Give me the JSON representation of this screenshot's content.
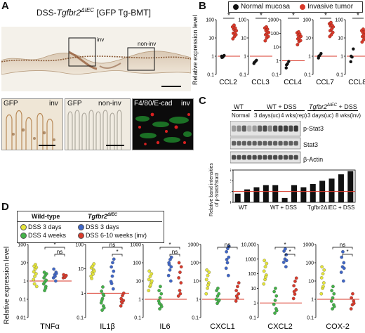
{
  "panelA": {
    "letter": "A",
    "title_prefix": "DSS-",
    "title_gene": "Tgfbr2",
    "title_super": "ΔIEC",
    "title_suffix": " [GFP Tg-BMT]",
    "region_inv": "inv",
    "region_noninv": "non-inv",
    "sub1_marker": "GFP",
    "sub1_region": "inv",
    "sub2_marker": "GFP",
    "sub2_region": "non-inv",
    "sub3_marker": "F4/80/E-cad",
    "sub3_region": "inv"
  },
  "panelB": {
    "letter": "B",
    "legend_normal": "Normal mucosa",
    "legend_tumor": "Invasive tumor",
    "ylabel": "Relative expression level",
    "colors": {
      "normal": "#111111",
      "tumor": "#d93a2b",
      "line": "#d93a2b"
    },
    "chart_data": [
      {
        "type": "scatter",
        "xlabel": "CCL2",
        "scale": "log",
        "ylim": [
          0.1,
          100
        ],
        "yticks": [
          "100",
          "10",
          "1",
          "0.1"
        ],
        "significance": "*",
        "series": [
          {
            "name": "Normal mucosa",
            "values": [
              1.0,
              0.9,
              1.1,
              0.85
            ]
          },
          {
            "name": "Invasive tumor",
            "values": [
              9,
              12,
              15,
              18,
              20,
              25,
              30,
              35,
              40,
              50
            ]
          }
        ]
      },
      {
        "type": "scatter",
        "xlabel": "CCL3",
        "scale": "log",
        "ylim": [
          0.1,
          100
        ],
        "yticks": [
          "100",
          "10",
          "1",
          "0.1"
        ],
        "significance": "*",
        "series": [
          {
            "name": "Normal mucosa",
            "values": [
              0.4,
              0.5,
              0.6,
              0.45
            ]
          },
          {
            "name": "Invasive tumor",
            "values": [
              7,
              10,
              12,
              15,
              18,
              20,
              25,
              30,
              35,
              40
            ]
          }
        ]
      },
      {
        "type": "scatter",
        "xlabel": "CCL4",
        "scale": "log",
        "ylim": [
          0.1,
          1000
        ],
        "yticks": [
          "1000",
          "100",
          "10",
          "1",
          "0.1"
        ],
        "significance": "*",
        "series": [
          {
            "name": "Normal mucosa",
            "values": [
              0.3,
              0.6,
              0.9,
              0.5
            ]
          },
          {
            "name": "Invasive tumor",
            "values": [
              15,
              25,
              30,
              40,
              50,
              60,
              70,
              90,
              110,
              130
            ]
          }
        ]
      },
      {
        "type": "scatter",
        "xlabel": "CCL7",
        "scale": "log",
        "ylim": [
          0.1,
          100
        ],
        "yticks": [
          "100",
          "10",
          "1",
          "0.1"
        ],
        "significance": "*",
        "series": [
          {
            "name": "Normal mucosa",
            "values": [
              0.8,
              1.1,
              1.4,
              1.0
            ]
          },
          {
            "name": "Invasive tumor",
            "values": [
              12,
              15,
              20,
              25,
              30,
              40,
              45,
              50,
              60,
              70
            ]
          }
        ]
      },
      {
        "type": "scatter",
        "xlabel": "CCL8",
        "scale": "log",
        "ylim": [
          0.1,
          100
        ],
        "yticks": [
          "100",
          "10",
          "1",
          "0.1"
        ],
        "significance": "*",
        "series": [
          {
            "name": "Normal mucosa",
            "values": [
              0.5,
              0.9,
              2.5,
              1.0
            ]
          },
          {
            "name": "Invasive tumor",
            "values": [
              6,
              8,
              10,
              12,
              15,
              18,
              20,
              22,
              25,
              30
            ]
          }
        ]
      }
    ]
  },
  "panelC": {
    "letter": "C",
    "group_wt": "WT",
    "group_wtdss": "WT + DSS",
    "group_ko_gene": "Tgfbr2",
    "group_ko_super": "ΔIEC",
    "group_ko_suffix": " + DSS",
    "lanes": [
      "Normal",
      "3 days(uc)",
      "4 wks(rep)",
      "3 days(uc)",
      "8 wks(inv)"
    ],
    "blot_labels": [
      "p-Stat3",
      "Stat3",
      "β-Actin"
    ],
    "ylabel": "Relative band intensities of p-Stat3/Stat3",
    "chart_data": {
      "type": "bar",
      "ylim": [
        0,
        3
      ],
      "yticks": [
        "3",
        "2",
        "1",
        "0"
      ],
      "xgroups": [
        "WT",
        "WT + DSS",
        "Tgfbr2ΔIEC + DSS"
      ],
      "values": [
        0.8,
        1.2,
        1.4,
        1.6,
        1.6,
        0.4,
        1.6,
        1.4,
        1.7,
        2.0,
        2.2,
        2.6,
        2.9
      ],
      "reference_line": 1
    }
  },
  "panelD": {
    "letter": "D",
    "legend_wt_title": "Wild-type",
    "legend_ko_gene": "Tgfbr2",
    "legend_ko_super": "ΔIEC",
    "legend_items": [
      {
        "label": "DSS  3 days",
        "color": "#e5e53a"
      },
      {
        "label": "DSS  4 weeks",
        "color": "#44b349"
      },
      {
        "label": "DSS  3 days",
        "color": "#3f66c7"
      },
      {
        "label": "DSS  6-10 weeks (inv)",
        "color": "#d93a2b"
      }
    ],
    "ylabel": "Relative expression level",
    "chart_data": [
      {
        "type": "scatter",
        "xlabel": "TNFα",
        "scale": "log",
        "ylim": [
          0.01,
          100
        ],
        "yticks": [
          "100",
          "10",
          "1",
          "0.1",
          "0.01"
        ],
        "brackets": [
          {
            "label": "*",
            "from": 1,
            "to": 3,
            "level": "high"
          },
          {
            "label": "ns",
            "from": 2,
            "to": 3,
            "level": "low"
          }
        ],
        "series": [
          {
            "name": "Wild-type DSS 3 days",
            "values": [
              1.2,
              1.8,
              2.5,
              3.2,
              4.5,
              5.5,
              6.5,
              8,
              0.5,
              0.7
            ]
          },
          {
            "name": "Wild-type DSS 4 weeks",
            "values": [
              0.3,
              0.5,
              0.7,
              0.9,
              1.1,
              1.5,
              2.0,
              2.5,
              3.0,
              0.4
            ]
          },
          {
            "name": "Tgfbr2ΔIEC DSS 3 days",
            "values": [
              1.0,
              1.5,
              2.2,
              3.0,
              4.5,
              1.8,
              2.6
            ]
          },
          {
            "name": "Tgfbr2ΔIEC DSS 6-10 weeks (inv)",
            "values": [
              1.5,
              1.7,
              1.9,
              2.2,
              1.6,
              2.0
            ]
          }
        ]
      },
      {
        "type": "scatter",
        "xlabel": "IL1β",
        "scale": "log",
        "ylim": [
          0.1,
          100
        ],
        "yticks": [
          "100",
          "10",
          "1",
          "0.1"
        ],
        "brackets": [
          {
            "label": "ns",
            "from": 1,
            "to": 3,
            "level": "high"
          },
          {
            "label": "*",
            "from": 2,
            "to": 3,
            "level": "low"
          }
        ],
        "series": [
          {
            "name": "Wild-type DSS 3 days",
            "values": [
              5,
              7,
              9,
              11,
              13,
              16,
              4,
              6,
              8
            ]
          },
          {
            "name": "Wild-type DSS 4 weeks",
            "values": [
              0.2,
              0.3,
              0.4,
              0.6,
              0.8,
              1.2,
              1.8,
              0.25,
              0.5,
              0.9
            ]
          },
          {
            "name": "Tgfbr2ΔIEC DSS 3 days",
            "values": [
              1.5,
              3,
              5,
              8,
              12,
              18,
              25,
              2.5
            ]
          },
          {
            "name": "Tgfbr2ΔIEC DSS 6-10 weeks (inv)",
            "values": [
              0.3,
              0.4,
              0.5,
              0.6,
              0.8,
              1.0,
              0.45
            ]
          }
        ]
      },
      {
        "type": "scatter",
        "xlabel": "IL6",
        "scale": "log",
        "ylim": [
          0.1,
          1000
        ],
        "yticks": [
          "1000",
          "100",
          "10",
          "1",
          "0.1"
        ],
        "brackets": [
          {
            "label": "*",
            "from": 1,
            "to": 3,
            "level": "high"
          },
          {
            "label": "ns",
            "from": 2,
            "to": 3,
            "level": "low"
          }
        ],
        "series": [
          {
            "name": "Wild-type DSS 3 days",
            "values": [
              3,
              5,
              8,
              12,
              18,
              25,
              35,
              6,
              10
            ]
          },
          {
            "name": "Wild-type DSS 4 weeks",
            "values": [
              0.3,
              0.5,
              0.8,
              1.2,
              2,
              3,
              5,
              0.4,
              0.6
            ]
          },
          {
            "name": "Tgfbr2ΔIEC DSS 3 days",
            "values": [
              10,
              20,
              40,
              60,
              100,
              150,
              200,
              80
            ]
          },
          {
            "name": "Tgfbr2ΔIEC DSS 6-10 weeks (inv)",
            "values": [
              1.5,
              3,
              8,
              15,
              30,
              60,
              100,
              2
            ]
          }
        ]
      },
      {
        "type": "scatter",
        "xlabel": "CXCL1",
        "scale": "log",
        "ylim": [
          0.1,
          1000
        ],
        "yticks": [
          "1000",
          "100",
          "10",
          "1",
          "0.1"
        ],
        "brackets": [
          {
            "label": "ns",
            "from": 1,
            "to": 3,
            "level": "high"
          }
        ],
        "series": [
          {
            "name": "Wild-type DSS 3 days",
            "values": [
              2,
              4,
              8,
              12,
              20,
              30,
              40,
              6
            ]
          },
          {
            "name": "Wild-type DSS 4 weeks",
            "values": [
              0.6,
              0.8,
              1.0,
              1.5,
              2,
              3,
              4,
              0.9
            ]
          },
          {
            "name": "Tgfbr2ΔIEC DSS 3 days",
            "values": [
              20,
              50,
              100,
              200,
              400,
              600,
              800,
              150
            ]
          },
          {
            "name": "Tgfbr2ΔIEC DSS 6-10 weeks (inv)",
            "values": [
              0.8,
              1.2,
              2,
              3,
              5,
              8,
              1.5
            ]
          }
        ]
      },
      {
        "type": "scatter",
        "xlabel": "CXCL2",
        "scale": "log",
        "ylim": [
          0.1,
          10000
        ],
        "yticks": [
          "10,000",
          "1000",
          "100",
          "10",
          "1",
          "0.1"
        ],
        "brackets": [
          {
            "label": "*",
            "from": 1,
            "to": 3,
            "level": "high"
          },
          {
            "label": "*",
            "from": 2,
            "to": 3,
            "level": "low"
          }
        ],
        "series": [
          {
            "name": "Wild-type DSS 3 days",
            "values": [
              20,
              40,
              80,
              150,
              300,
              500,
              800,
              60
            ]
          },
          {
            "name": "Wild-type DSS 4 weeks",
            "values": [
              0.2,
              0.4,
              0.8,
              1.5,
              3,
              6,
              10,
              0.3
            ]
          },
          {
            "name": "Tgfbr2ΔIEC DSS 3 days",
            "values": [
              300,
              600,
              1000,
              2000,
              3500,
              5000,
              800
            ]
          },
          {
            "name": "Tgfbr2ΔIEC DSS 6-10 weeks (inv)",
            "values": [
              2,
              4,
              8,
              15,
              30,
              50,
              6
            ]
          }
        ]
      },
      {
        "type": "scatter",
        "xlabel": "COX-2",
        "scale": "log",
        "ylim": [
          0.1,
          1000
        ],
        "yticks": [
          "1000",
          "100",
          "10",
          "1",
          "0.1"
        ],
        "brackets": [
          {
            "label": "ns",
            "from": 1,
            "to": 3,
            "level": "high"
          },
          {
            "label": "*",
            "from": 2,
            "to": 3,
            "level": "low"
          }
        ],
        "series": [
          {
            "name": "Wild-type DSS 3 days",
            "values": [
              2,
              4,
              8,
              15,
              25,
              40,
              60,
              5
            ]
          },
          {
            "name": "Wild-type DSS 4 weeks",
            "values": [
              0.3,
              0.5,
              0.8,
              1.2,
              2,
              3,
              5,
              0.4
            ]
          },
          {
            "name": "Tgfbr2ΔIEC DSS 3 days",
            "values": [
              10,
              30,
              60,
              100,
              200,
              400,
              50
            ]
          },
          {
            "name": "Tgfbr2ΔIEC DSS 6-10 weeks (inv)",
            "values": [
              0.3,
              0.5,
              0.8,
              1.2,
              2,
              0.6
            ]
          }
        ]
      }
    ]
  }
}
